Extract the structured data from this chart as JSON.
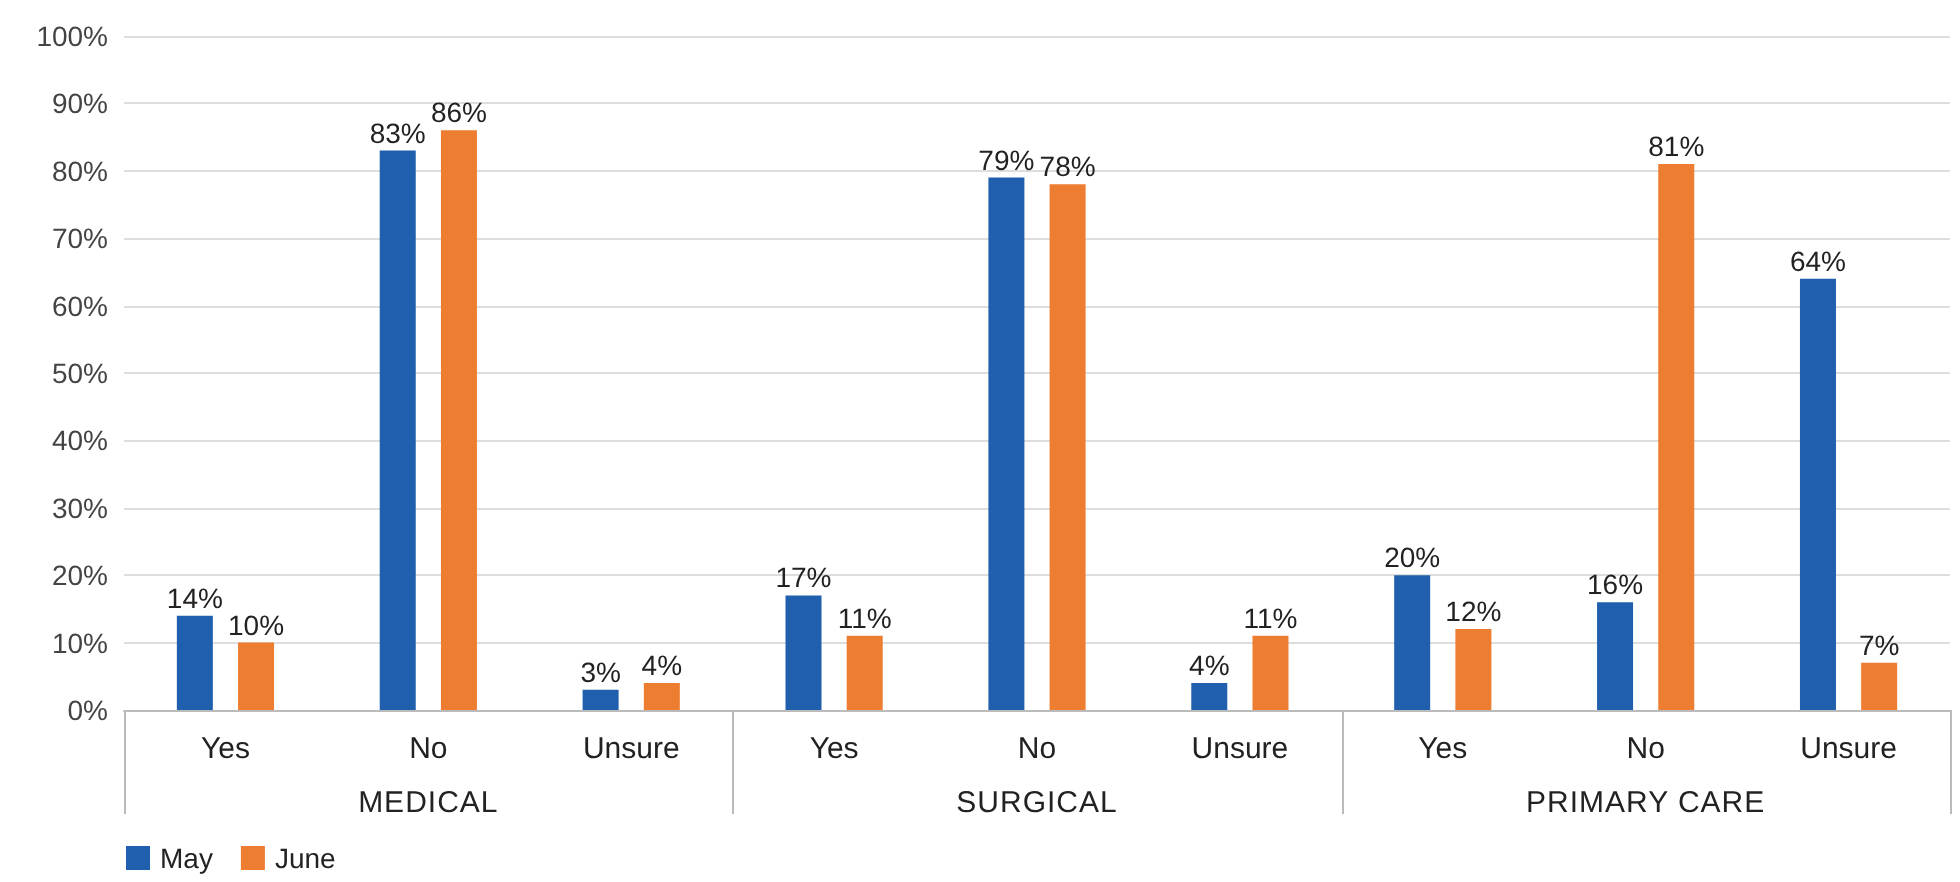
{
  "chart_data": {
    "type": "bar",
    "categories": [
      "Yes",
      "No",
      "Unsure",
      "Yes",
      "No",
      "Unsure",
      "Yes",
      "No",
      "Unsure"
    ],
    "series": [
      {
        "name": "May",
        "color": "#1f5fad",
        "values": [
          14,
          83,
          3,
          17,
          79,
          4,
          20,
          16,
          64
        ],
        "value_labels": [
          "14%",
          "83%",
          "3%",
          "17%",
          "79%",
          "4%",
          "20%",
          "16%",
          "64%"
        ]
      },
      {
        "name": "June",
        "color": "#ed7d31",
        "values": [
          10,
          86,
          4,
          11,
          78,
          11,
          12,
          81,
          7
        ],
        "value_labels": [
          "10%",
          "86%",
          "4%",
          "11%",
          "78%",
          "11%",
          "12%",
          "81%",
          "7%"
        ]
      }
    ],
    "annotations": [
      "MEDICAL",
      "SURGICAL",
      "PRIMARY CARE"
    ],
    "ylim": [
      0,
      100
    ],
    "yticks": [
      {
        "value": 0,
        "label": "0%"
      },
      {
        "value": 10,
        "label": "10%"
      },
      {
        "value": 20,
        "label": "20%"
      },
      {
        "value": 30,
        "label": "30%"
      },
      {
        "value": 40,
        "label": "40%"
      },
      {
        "value": 50,
        "label": "50%"
      },
      {
        "value": 60,
        "label": "60%"
      },
      {
        "value": 70,
        "label": "70%"
      },
      {
        "value": 80,
        "label": "80%"
      },
      {
        "value": 90,
        "label": "90%"
      },
      {
        "value": 100,
        "label": "100%"
      }
    ],
    "grid": "y",
    "legend": "bottom left"
  }
}
